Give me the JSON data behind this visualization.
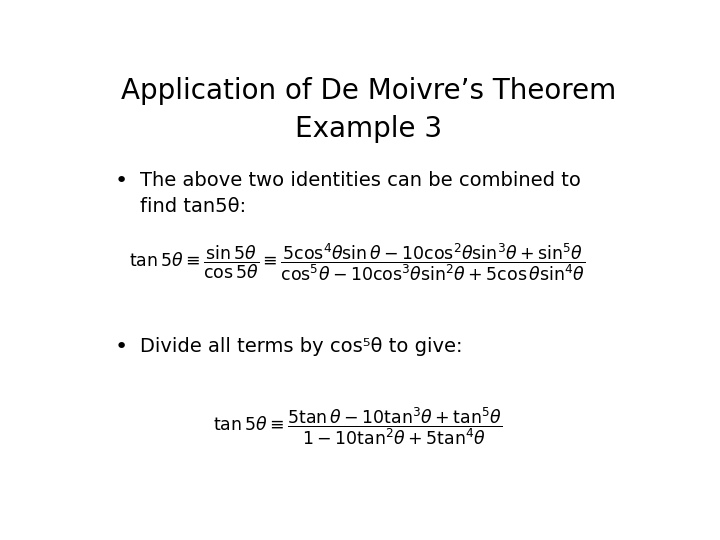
{
  "title_line1": "Application of De Moivre’s Theorem",
  "title_line2": "Example 3",
  "bullet1_line1": "The above two identities can be combined to",
  "bullet1_line2": "find tan5θ:",
  "bullet2": "Divide all terms by cos⁵θ to give:",
  "bg_color": "#ffffff",
  "text_color": "#000000",
  "title_fontsize": 20,
  "bullet_fontsize": 14,
  "formula_fontsize": 12.5
}
